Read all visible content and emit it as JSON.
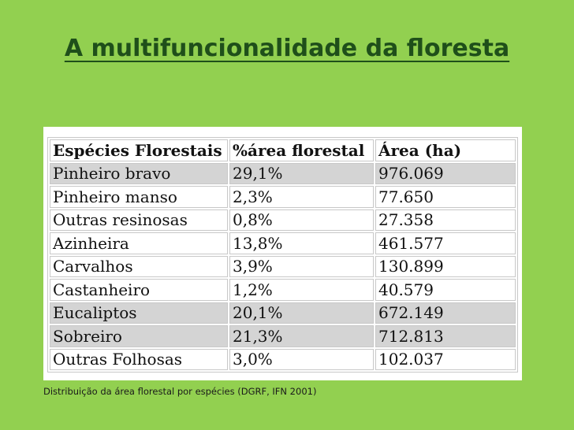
{
  "slide": {
    "title": "A multifuncionalidade da floresta",
    "caption": "Distribuição da área florestal por espécies (DGRF, IFN 2001)"
  },
  "table": {
    "headers": [
      "Espécies Florestais",
      "%área florestal",
      "Área (ha)"
    ],
    "rows": [
      {
        "species": "Pinheiro bravo",
        "percent": "29,1%",
        "area": "976.069",
        "highlighted": true
      },
      {
        "species": "Pinheiro manso",
        "percent": "2,3%",
        "area": "77.650",
        "highlighted": false
      },
      {
        "species": "Outras resinosas",
        "percent": "0,8%",
        "area": "27.358",
        "highlighted": false
      },
      {
        "species": "Azinheira",
        "percent": "13,8%",
        "area": "461.577",
        "highlighted": false
      },
      {
        "species": "Carvalhos",
        "percent": "3,9%",
        "area": "130.899",
        "highlighted": false
      },
      {
        "species": "Castanheiro",
        "percent": "1,2%",
        "area": "40.579",
        "highlighted": false
      },
      {
        "species": "Eucaliptos",
        "percent": "20,1%",
        "area": "672.149",
        "highlighted": true
      },
      {
        "species": "Sobreiro",
        "percent": "21,3%",
        "area": "712.813",
        "highlighted": true
      },
      {
        "species": "Outras Folhosas",
        "percent": "3,0%",
        "area": "102.037",
        "highlighted": false
      }
    ]
  },
  "colors": {
    "background": "#92d050",
    "title": "#1f4f1a",
    "highlight_row": "#d4d4d4"
  }
}
